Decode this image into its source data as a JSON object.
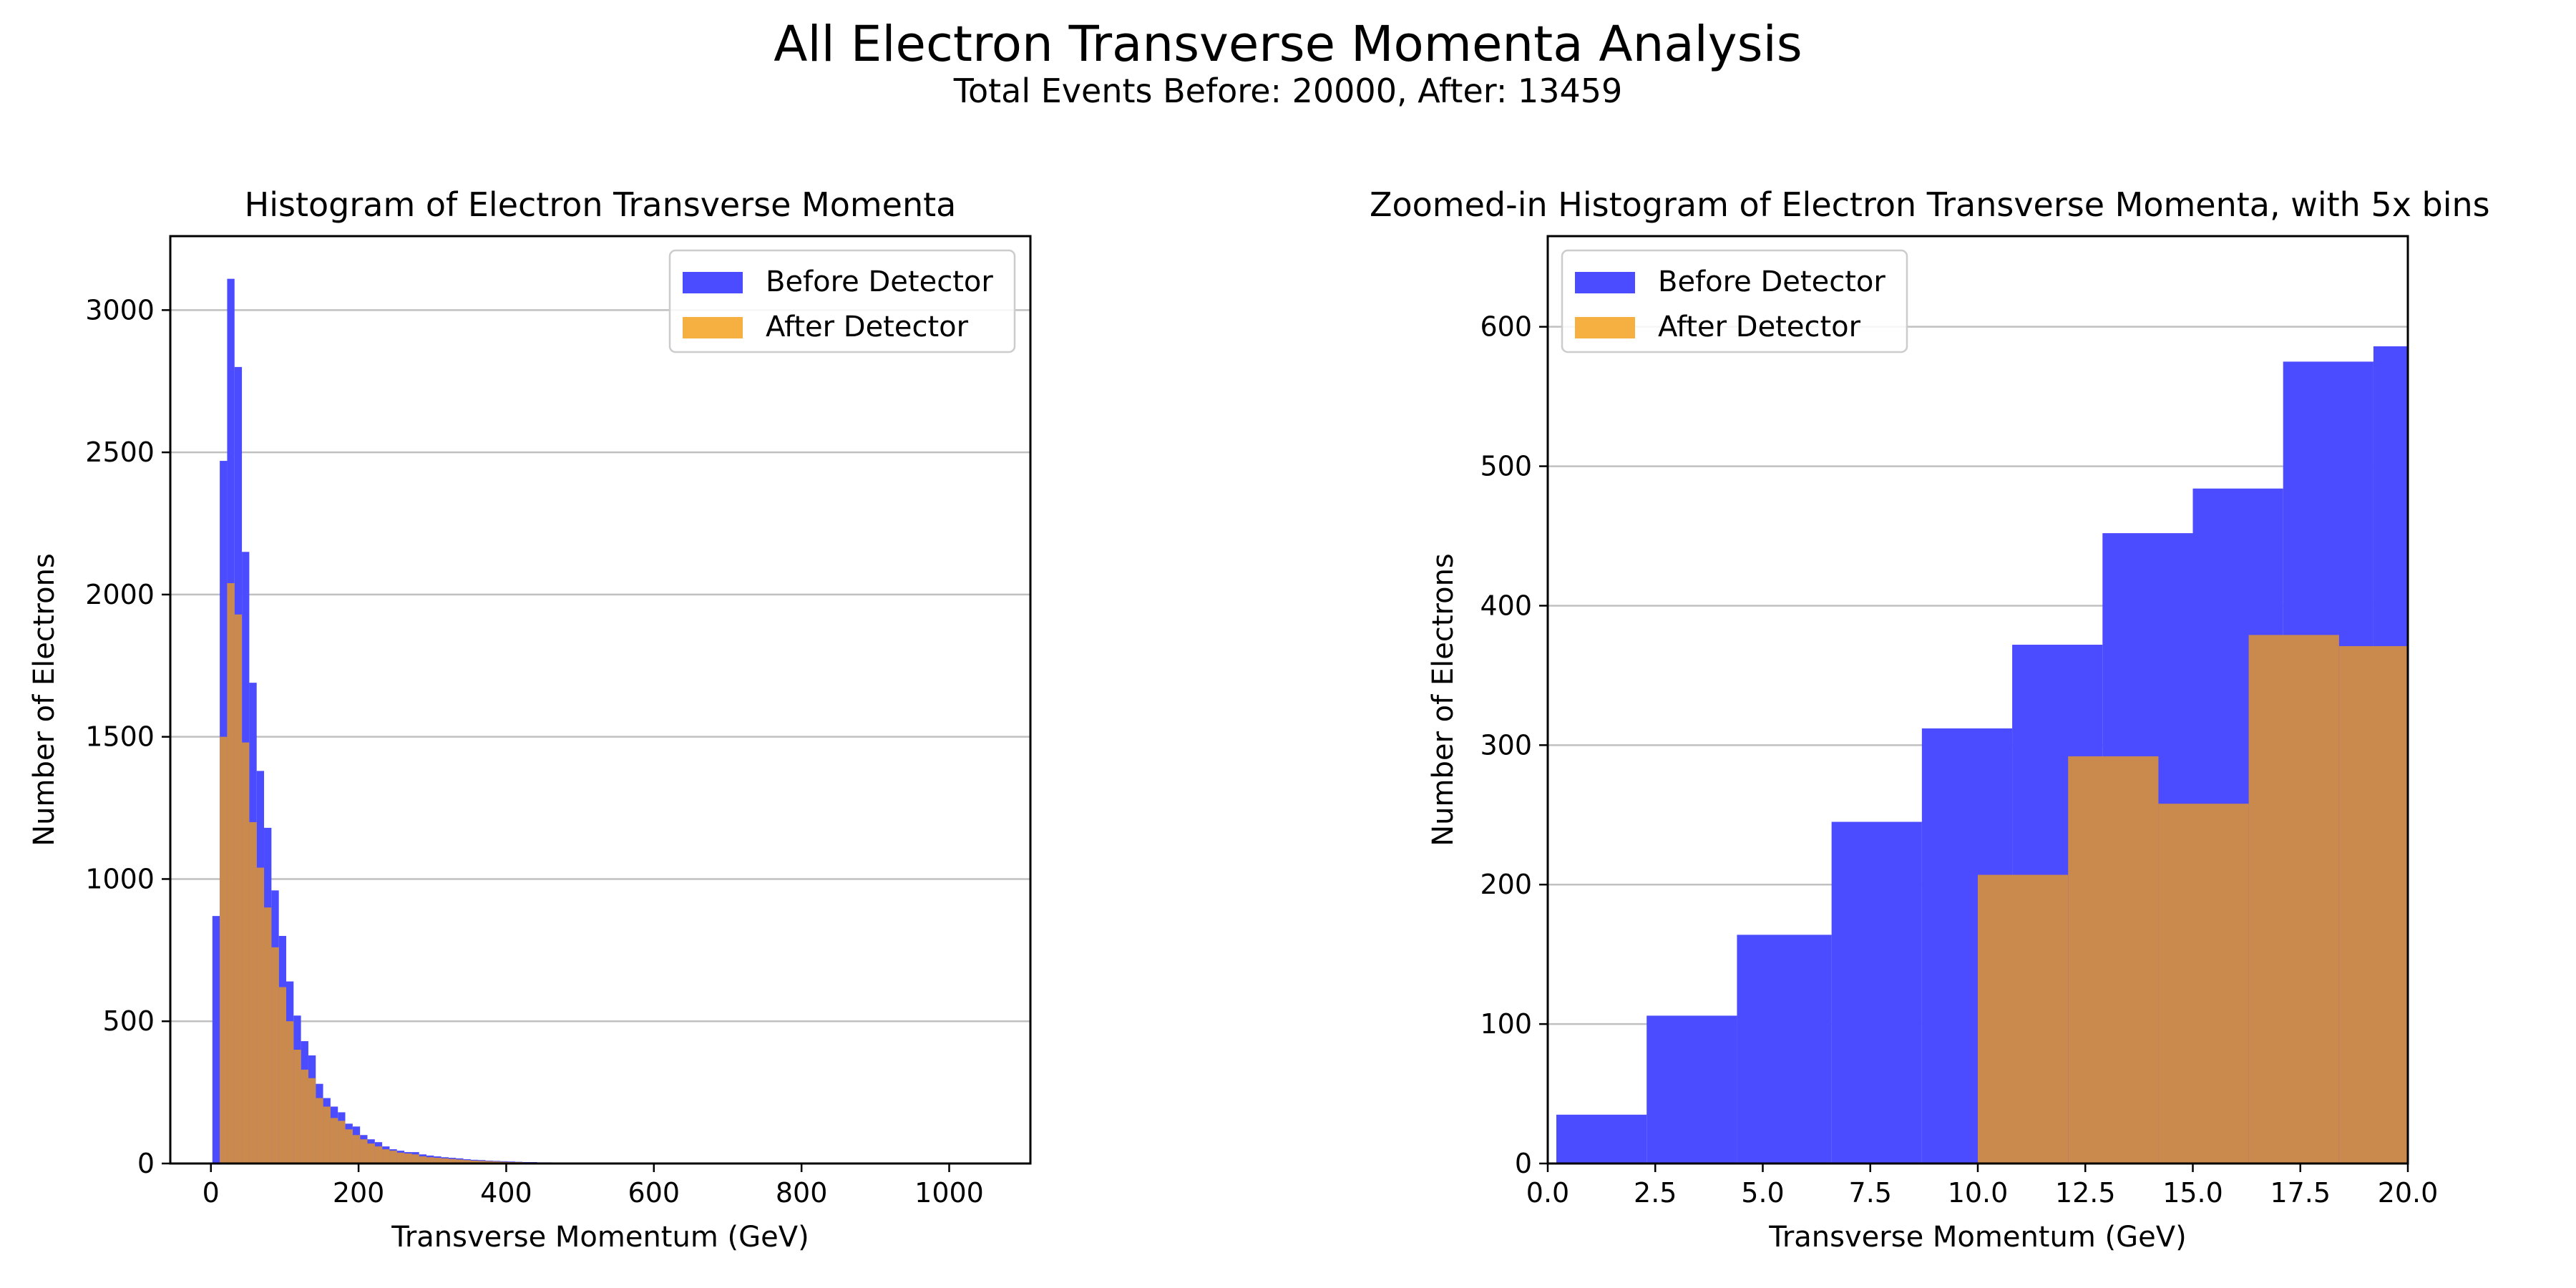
{
  "figure": {
    "title": "All Electron Transverse Momenta Analysis",
    "subtitle": "Total Events Before: 20000, After: 13459"
  },
  "colors": {
    "before": "#4b4bff",
    "after": "#f5b041",
    "overlap": "#cb8a4d",
    "grid": "#c0c0c0"
  },
  "chart_data": [
    {
      "type": "bar",
      "title": "Histogram of Electron Transverse Momenta",
      "xlabel": "Transverse Momentum (GeV)",
      "ylabel": "Number of Electrons",
      "xlim": [
        -55,
        1110
      ],
      "ylim": [
        0,
        3260
      ],
      "xticks": [
        0,
        200,
        400,
        600,
        800,
        1000
      ],
      "xtick_labels": [
        "0",
        "200",
        "400",
        "600",
        "800",
        "1000"
      ],
      "yticks": [
        0,
        500,
        1000,
        1500,
        2000,
        2500,
        3000
      ],
      "ytick_labels": [
        "0",
        "500",
        "1000",
        "1500",
        "2000",
        "2500",
        "3000"
      ],
      "grid": "y",
      "legend": {
        "position": "upper right",
        "entries": [
          "Before Detector",
          "After Detector"
        ]
      },
      "bin_edges": [
        2,
        12,
        22,
        32,
        42,
        52,
        62,
        72,
        82,
        92,
        102,
        112,
        122,
        132,
        142,
        152,
        162,
        172,
        182,
        192,
        202,
        212,
        222,
        232,
        242,
        252,
        262,
        272,
        282,
        292,
        302,
        312,
        322,
        332,
        342,
        352,
        362,
        372,
        382,
        392,
        402,
        412,
        422,
        432,
        442,
        452,
        462,
        472,
        482,
        492,
        502
      ],
      "series": [
        {
          "name": "Before Detector",
          "values": [
            870,
            2470,
            3110,
            2800,
            2150,
            1690,
            1380,
            1180,
            960,
            800,
            640,
            520,
            430,
            380,
            280,
            230,
            200,
            180,
            140,
            130,
            100,
            85,
            75,
            60,
            50,
            45,
            40,
            40,
            32,
            28,
            25,
            22,
            20,
            18,
            15,
            13,
            12,
            10,
            9,
            8,
            7,
            6,
            5,
            5,
            4,
            4,
            3,
            3,
            3,
            2
          ]
        },
        {
          "name": "After Detector",
          "values": [
            0,
            1500,
            2040,
            1930,
            1480,
            1200,
            1040,
            900,
            760,
            620,
            500,
            400,
            330,
            300,
            230,
            200,
            160,
            150,
            120,
            100,
            85,
            70,
            60,
            50,
            45,
            38,
            35,
            32,
            25,
            22,
            20,
            18,
            16,
            14,
            12,
            10,
            9,
            8,
            7,
            6,
            5,
            5,
            4,
            4,
            3,
            3,
            2,
            2,
            2,
            1
          ]
        }
      ]
    },
    {
      "type": "bar",
      "title": "Zoomed-in Histogram of Electron Transverse Momenta, with 5x bins",
      "xlabel": "Transverse Momentum (GeV)",
      "ylabel": "Number of Electrons",
      "xlim": [
        0,
        20
      ],
      "ylim": [
        0,
        665
      ],
      "xticks": [
        0,
        2.5,
        5,
        7.5,
        10,
        12.5,
        15,
        17.5,
        20
      ],
      "xtick_labels": [
        "0.0",
        "2.5",
        "5.0",
        "7.5",
        "10.0",
        "12.5",
        "15.0",
        "17.5",
        "20.0"
      ],
      "yticks": [
        0,
        100,
        200,
        300,
        400,
        500,
        600
      ],
      "ytick_labels": [
        "0",
        "100",
        "200",
        "300",
        "400",
        "500",
        "600"
      ],
      "grid": "y",
      "legend": {
        "position": "upper left",
        "entries": [
          "Before Detector",
          "After Detector"
        ]
      },
      "series": [
        {
          "name": "Before Detector",
          "bin_edges": [
            0.2,
            2.3,
            4.4,
            6.6,
            8.7,
            10.8,
            12.9,
            15.0,
            17.1,
            19.2,
            21.3
          ],
          "values": [
            35,
            106,
            164,
            245,
            312,
            372,
            452,
            484,
            575,
            586
          ]
        },
        {
          "name": "After Detector",
          "bin_edges": [
            10.0,
            12.1,
            14.2,
            16.3,
            18.4,
            20.5
          ],
          "values": [
            207,
            292,
            258,
            379,
            371
          ]
        }
      ]
    }
  ]
}
